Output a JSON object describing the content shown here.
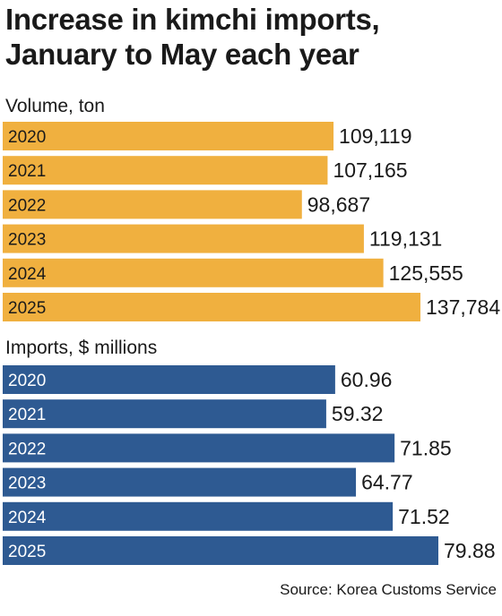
{
  "title_line1": "Increase in kimchi imports,",
  "title_line2": "January to May each year",
  "source": "Source: Korea Customs Service",
  "colors": {
    "volume_bar": "#F0B03F",
    "imports_bar": "#2E5A92",
    "volume_year_text": "#1a1a1a",
    "imports_year_text": "#ffffff"
  },
  "chart_data": [
    {
      "type": "bar",
      "orientation": "horizontal",
      "title": "Volume, ton",
      "categories": [
        "2020",
        "2021",
        "2022",
        "2023",
        "2024",
        "2025"
      ],
      "values": [
        109119,
        107165,
        98687,
        119131,
        125555,
        137784
      ],
      "value_labels": [
        "109,119",
        "107,165",
        "98,687",
        "119,131",
        "125,555",
        "137,784"
      ]
    },
    {
      "type": "bar",
      "orientation": "horizontal",
      "title": "Imports, $ millions",
      "categories": [
        "2020",
        "2021",
        "2022",
        "2023",
        "2024",
        "2025"
      ],
      "values": [
        60.96,
        59.32,
        71.85,
        64.77,
        71.52,
        79.88
      ],
      "value_labels": [
        "60.96",
        "59.32",
        "71.85",
        "64.77",
        "71.52",
        "79.88"
      ]
    }
  ]
}
